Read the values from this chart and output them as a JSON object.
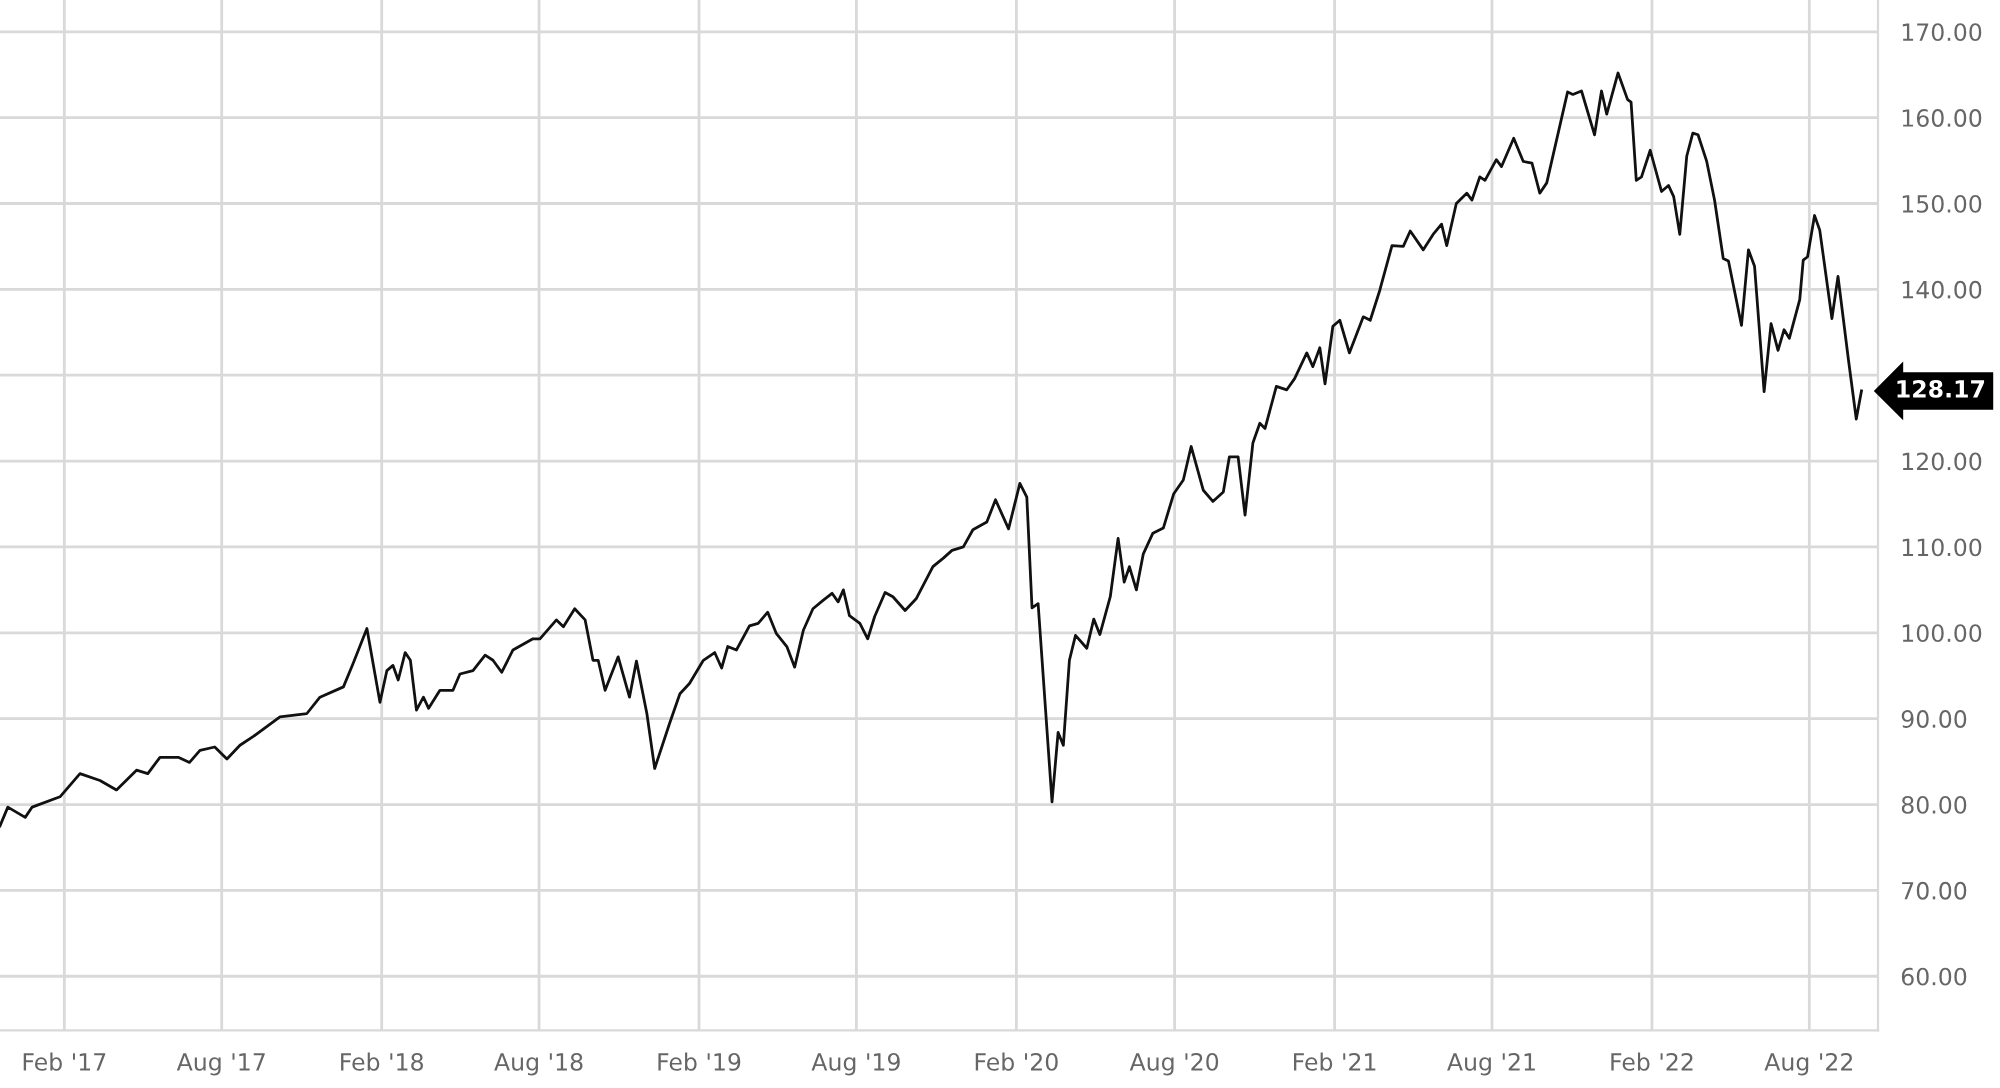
{
  "chart_data": {
    "type": "line",
    "x": [
      "2016-11-19",
      "2016-11-28",
      "2016-12-18",
      "2016-12-26",
      "2017-01-27",
      "2017-02-19",
      "2017-03-14",
      "2017-04-02",
      "2017-04-25",
      "2017-05-08",
      "2017-05-22",
      "2017-06-12",
      "2017-06-25",
      "2017-07-07",
      "2017-07-24",
      "2017-08-07",
      "2017-08-22",
      "2017-09-06",
      "2017-10-07",
      "2017-11-07",
      "2017-11-22",
      "2017-12-19",
      "2017-12-30",
      "2018-01-15",
      "2018-01-30",
      "2018-02-07",
      "2018-02-14",
      "2018-02-20",
      "2018-02-28",
      "2018-03-06",
      "2018-03-13",
      "2018-03-21",
      "2018-03-27",
      "2018-04-09",
      "2018-04-24",
      "2018-05-02",
      "2018-05-17",
      "2018-05-31",
      "2018-06-09",
      "2018-06-19",
      "2018-07-02",
      "2018-07-25",
      "2018-08-02",
      "2018-08-21",
      "2018-08-29",
      "2018-09-11",
      "2018-09-23",
      "2018-10-02",
      "2018-10-08",
      "2018-10-16",
      "2018-10-31",
      "2018-11-13",
      "2018-11-21",
      "2018-12-03",
      "2018-12-12",
      "2018-12-29",
      "2019-01-10",
      "2019-01-21",
      "2019-02-06",
      "2019-02-19",
      "2019-02-27",
      "2019-03-06",
      "2019-03-16",
      "2019-03-31",
      "2019-04-10",
      "2019-04-21",
      "2019-05-01",
      "2019-05-13",
      "2019-05-22",
      "2019-06-01",
      "2019-06-12",
      "2019-06-24",
      "2019-07-04",
      "2019-07-11",
      "2019-07-17",
      "2019-07-24",
      "2019-08-05",
      "2019-08-14",
      "2019-08-22",
      "2019-09-03",
      "2019-09-12",
      "2019-09-26",
      "2019-10-09",
      "2019-10-28",
      "2019-11-09",
      "2019-11-19",
      "2019-12-02",
      "2019-12-13",
      "2019-12-29",
      "2020-01-08",
      "2020-01-23",
      "2020-02-05",
      "2020-02-13",
      "2020-02-19",
      "2020-02-26",
      "2020-03-13",
      "2020-03-20",
      "2020-03-26",
      "2020-04-02",
      "2020-04-09",
      "2020-04-22",
      "2020-04-30",
      "2020-05-07",
      "2020-05-19",
      "2020-05-28",
      "2020-06-04",
      "2020-06-10",
      "2020-06-18",
      "2020-06-26",
      "2020-07-07",
      "2020-07-19",
      "2020-07-31",
      "2020-08-11",
      "2020-08-20",
      "2020-09-03",
      "2020-09-14",
      "2020-09-26",
      "2020-10-03",
      "2020-10-13",
      "2020-10-21",
      "2020-10-30",
      "2020-11-07",
      "2020-11-13",
      "2020-11-26",
      "2020-12-08",
      "2020-12-17",
      "2020-12-31",
      "2021-01-07",
      "2021-01-15",
      "2021-01-21",
      "2021-01-30",
      "2021-02-07",
      "2021-02-18",
      "2021-03-06",
      "2021-03-14",
      "2021-03-25",
      "2021-04-08",
      "2021-04-21",
      "2021-04-29",
      "2021-05-14",
      "2021-05-26",
      "2021-06-04",
      "2021-06-10",
      "2021-06-21",
      "2021-07-03",
      "2021-07-09",
      "2021-07-18",
      "2021-07-24",
      "2021-08-06",
      "2021-08-12",
      "2021-08-26",
      "2021-09-06",
      "2021-09-16",
      "2021-09-25",
      "2021-10-03",
      "2021-10-27",
      "2021-11-02",
      "2021-11-12",
      "2021-11-27",
      "2021-12-05",
      "2021-12-11",
      "2021-12-24",
      "2022-01-04",
      "2022-01-08",
      "2022-01-14",
      "2022-01-20",
      "2022-01-30",
      "2022-02-12",
      "2022-02-20",
      "2022-02-26",
      "2022-03-05",
      "2022-03-13",
      "2022-03-20",
      "2022-03-26",
      "2022-04-05",
      "2022-04-14",
      "2022-04-24",
      "2022-04-30",
      "2022-05-15",
      "2022-05-23",
      "2022-05-30",
      "2022-06-10",
      "2022-06-18",
      "2022-06-26",
      "2022-07-03",
      "2022-07-09",
      "2022-07-21",
      "2022-07-25",
      "2022-07-30",
      "2022-08-07",
      "2022-08-13",
      "2022-08-27",
      "2022-09-03",
      "2022-09-15",
      "2022-09-24",
      "2022-09-30"
    ],
    "series": [
      {
        "color": "#111111",
        "values": [
          77.5,
          79.7,
          78.5,
          79.7,
          80.9,
          83.6,
          82.8,
          81.7,
          84.0,
          83.6,
          85.5,
          85.5,
          84.9,
          86.3,
          86.7,
          85.3,
          86.9,
          87.9,
          90.2,
          90.6,
          92.5,
          93.7,
          96.4,
          100.5,
          91.9,
          95.6,
          96.2,
          94.5,
          97.7,
          96.8,
          91.0,
          92.5,
          91.2,
          93.3,
          93.3,
          95.2,
          95.6,
          97.4,
          96.8,
          95.4,
          98.0,
          99.3,
          99.3,
          101.5,
          100.7,
          102.8,
          101.5,
          96.8,
          96.8,
          93.3,
          97.2,
          92.5,
          96.7,
          90.6,
          84.2,
          89.4,
          92.9,
          94.1,
          96.8,
          97.7,
          95.9,
          98.4,
          98.0,
          100.8,
          101.1,
          102.4,
          99.9,
          98.4,
          96.0,
          100.3,
          102.8,
          103.8,
          104.6,
          103.6,
          105.0,
          102.0,
          101.1,
          99.3,
          101.9,
          104.7,
          104.2,
          102.6,
          104.0,
          107.7,
          108.7,
          109.6,
          110.0,
          112.0,
          112.9,
          115.5,
          112.1,
          117.4,
          115.8,
          102.9,
          103.4,
          80.3,
          88.4,
          86.9,
          96.8,
          99.7,
          98.2,
          101.6,
          99.8,
          104.2,
          111.0,
          105.9,
          107.7,
          105.0,
          109.2,
          111.6,
          112.2,
          116.2,
          117.8,
          121.7,
          116.6,
          115.3,
          116.4,
          120.5,
          120.5,
          113.7,
          122.1,
          124.4,
          123.8,
          128.7,
          128.3,
          129.6,
          132.6,
          131.0,
          133.2,
          129.0,
          135.7,
          136.4,
          132.6,
          136.8,
          136.4,
          139.9,
          145.1,
          145.0,
          146.8,
          144.6,
          146.5,
          147.6,
          145.1,
          150.0,
          151.2,
          150.4,
          153.1,
          152.7,
          155.1,
          154.3,
          157.6,
          154.9,
          154.7,
          151.2,
          152.4,
          163.0,
          162.7,
          163.1,
          158.0,
          163.1,
          160.4,
          165.2,
          162.1,
          161.8,
          152.7,
          153.1,
          156.2,
          151.4,
          152.1,
          150.8,
          146.4,
          155.5,
          158.2,
          158.0,
          154.9,
          150.4,
          143.6,
          143.3,
          135.8,
          144.6,
          142.7,
          128.1,
          136.0,
          132.9,
          135.3,
          134.3,
          138.8,
          143.4,
          143.8,
          148.6,
          146.9,
          136.6,
          141.5,
          131.8,
          124.9,
          128.17
        ]
      }
    ],
    "xlim": [
      "2016-11-19",
      "2022-10-19"
    ],
    "xticks": [
      {
        "value": "2017-02-01",
        "label": "Feb '17"
      },
      {
        "value": "2017-08-01",
        "label": "Aug '17"
      },
      {
        "value": "2018-02-01",
        "label": "Feb '18"
      },
      {
        "value": "2018-08-01",
        "label": "Aug '18"
      },
      {
        "value": "2019-02-01",
        "label": "Feb '19"
      },
      {
        "value": "2019-08-01",
        "label": "Aug '19"
      },
      {
        "value": "2020-02-01",
        "label": "Feb '20"
      },
      {
        "value": "2020-08-01",
        "label": "Aug '20"
      },
      {
        "value": "2021-02-01",
        "label": "Feb '21"
      },
      {
        "value": "2021-08-01",
        "label": "Aug '21"
      },
      {
        "value": "2022-02-01",
        "label": "Feb '22"
      },
      {
        "value": "2022-08-01",
        "label": "Aug '22"
      }
    ],
    "ylim": [
      53.7,
      173.7
    ],
    "yticks": [
      {
        "value": 60,
        "label": "60.00"
      },
      {
        "value": 70,
        "label": "70.00"
      },
      {
        "value": 80,
        "label": "80.00"
      },
      {
        "value": 90,
        "label": "90.00"
      },
      {
        "value": 100,
        "label": "100.00"
      },
      {
        "value": 110,
        "label": "110.00"
      },
      {
        "value": 120,
        "label": "120.00"
      },
      {
        "value": 130,
        "label": null
      },
      {
        "value": 140,
        "label": "140.00"
      },
      {
        "value": 150,
        "label": "150.00"
      },
      {
        "value": 160,
        "label": "160.00"
      },
      {
        "value": 170,
        "label": "170.00"
      }
    ],
    "grid": true,
    "annotations": [
      {
        "text": "128.17",
        "x": "2022-09-30",
        "y": 128.17
      }
    ]
  }
}
